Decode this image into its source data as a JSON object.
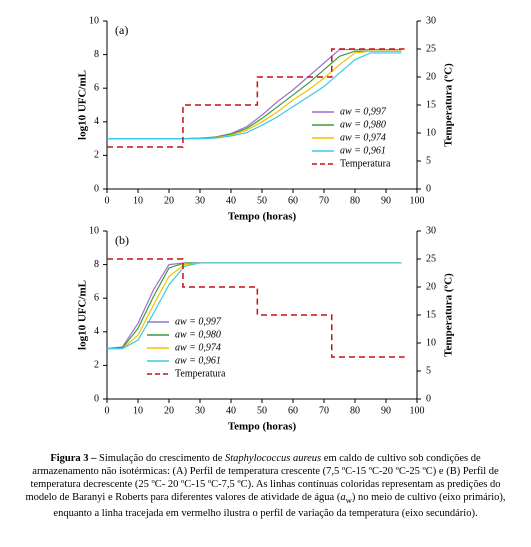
{
  "chart_data": [
    {
      "type": "line",
      "title": "(a)",
      "xlabel": "Tempo (horas)",
      "ylabel": "log10 UFC/mL",
      "y2label": "Temperatura (ºC)",
      "xlim": [
        0,
        100
      ],
      "xticks": [
        0,
        10,
        20,
        30,
        40,
        50,
        60,
        70,
        80,
        90,
        100
      ],
      "ylim": [
        0,
        10
      ],
      "yticks": [
        0,
        2,
        4,
        6,
        8,
        10
      ],
      "y2lim": [
        0,
        30
      ],
      "y2ticks": [
        0,
        5,
        10,
        15,
        20,
        25,
        30
      ],
      "legend": "lower right",
      "series": [
        {
          "name": "aw = 0,997",
          "color": "#9b6fd0",
          "x": [
            0,
            5,
            10,
            15,
            20,
            25,
            30,
            35,
            40,
            45,
            50,
            55,
            60,
            65,
            70,
            75,
            80,
            85,
            90,
            95
          ],
          "values": [
            3,
            3,
            3,
            3,
            3,
            3,
            3.02,
            3.1,
            3.3,
            3.7,
            4.4,
            5.2,
            5.9,
            6.7,
            7.5,
            8.3,
            8.3,
            8.3,
            8.3,
            8.3
          ]
        },
        {
          "name": "aw = 0,980",
          "color": "#3a9a3a",
          "x": [
            0,
            5,
            10,
            15,
            20,
            25,
            30,
            35,
            40,
            45,
            50,
            55,
            60,
            65,
            70,
            75,
            80,
            85,
            90,
            95
          ],
          "values": [
            3,
            3,
            3,
            3,
            3,
            3,
            3.02,
            3.08,
            3.25,
            3.6,
            4.2,
            4.9,
            5.6,
            6.3,
            7.1,
            7.9,
            8.2,
            8.2,
            8.2,
            8.2
          ]
        },
        {
          "name": "aw = 0,974",
          "color": "#f2c200",
          "x": [
            0,
            5,
            10,
            15,
            20,
            25,
            30,
            35,
            40,
            45,
            50,
            55,
            60,
            65,
            70,
            75,
            80,
            85,
            90,
            95
          ],
          "values": [
            3,
            3,
            3,
            3,
            3,
            3,
            3,
            3.05,
            3.2,
            3.5,
            4.0,
            4.6,
            5.3,
            5.9,
            6.6,
            7.4,
            8.1,
            8.2,
            8.2,
            8.2
          ]
        },
        {
          "name": "aw = 0,961",
          "color": "#3cc8ec",
          "x": [
            0,
            5,
            10,
            15,
            20,
            25,
            30,
            35,
            40,
            45,
            50,
            55,
            60,
            65,
            70,
            75,
            80,
            85,
            90,
            95
          ],
          "values": [
            3,
            3,
            3,
            3,
            3,
            3,
            3,
            3.03,
            3.15,
            3.35,
            3.8,
            4.3,
            4.9,
            5.5,
            6.1,
            6.9,
            7.7,
            8.1,
            8.1,
            8.1
          ]
        },
        {
          "name": "Temperatura",
          "color": "#cc1111",
          "dash": true,
          "axis": "y2",
          "x": [
            0,
            24.5,
            24.5,
            48.5,
            48.5,
            72.5,
            72.5,
            96
          ],
          "values": [
            7.5,
            7.5,
            15,
            15,
            20,
            20,
            25,
            25
          ]
        }
      ]
    },
    {
      "type": "line",
      "title": "(b)",
      "xlabel": "Tempo (horas)",
      "ylabel": "log10 UFC/mL",
      "y2label": "Temperatura (ºC)",
      "xlim": [
        0,
        100
      ],
      "xticks": [
        0,
        10,
        20,
        30,
        40,
        50,
        60,
        70,
        80,
        90,
        100
      ],
      "ylim": [
        0,
        10
      ],
      "yticks": [
        0,
        2,
        4,
        6,
        8,
        10
      ],
      "y2lim": [
        0,
        30
      ],
      "y2ticks": [
        0,
        5,
        10,
        15,
        20,
        25,
        30
      ],
      "legend": "lower center",
      "series": [
        {
          "name": "aw = 0,997",
          "color": "#9b6fd0",
          "x": [
            0,
            5,
            10,
            15,
            20,
            25,
            30,
            35,
            40,
            45,
            50,
            55,
            60,
            65,
            70,
            75,
            80,
            85,
            90,
            95
          ],
          "values": [
            3,
            3.1,
            4.5,
            6.5,
            8.0,
            8.1,
            8.1,
            8.1,
            8.1,
            8.1,
            8.1,
            8.1,
            8.1,
            8.1,
            8.1,
            8.1,
            8.1,
            8.1,
            8.1,
            8.1
          ]
        },
        {
          "name": "aw = 0,980",
          "color": "#3a9a3a",
          "x": [
            0,
            5,
            10,
            15,
            20,
            25,
            30,
            35,
            40,
            45,
            50,
            55,
            60,
            65,
            70,
            75,
            80,
            85,
            90,
            95
          ],
          "values": [
            3,
            3.05,
            4.2,
            6.1,
            7.8,
            8.1,
            8.1,
            8.1,
            8.1,
            8.1,
            8.1,
            8.1,
            8.1,
            8.1,
            8.1,
            8.1,
            8.1,
            8.1,
            8.1,
            8.1
          ]
        },
        {
          "name": "aw = 0,974",
          "color": "#f2c200",
          "x": [
            0,
            5,
            10,
            15,
            20,
            25,
            30,
            35,
            40,
            45,
            50,
            55,
            60,
            65,
            70,
            75,
            80,
            85,
            90,
            95
          ],
          "values": [
            3,
            3,
            3.8,
            5.6,
            7.3,
            8.0,
            8.1,
            8.1,
            8.1,
            8.1,
            8.1,
            8.1,
            8.1,
            8.1,
            8.1,
            8.1,
            8.1,
            8.1,
            8.1,
            8.1
          ]
        },
        {
          "name": "aw = 0,961",
          "color": "#3cc8ec",
          "x": [
            0,
            5,
            10,
            15,
            20,
            25,
            30,
            35,
            40,
            45,
            50,
            55,
            60,
            65,
            70,
            75,
            80,
            85,
            90,
            95
          ],
          "values": [
            3,
            3,
            3.5,
            5.1,
            6.8,
            7.9,
            8.1,
            8.1,
            8.1,
            8.1,
            8.1,
            8.1,
            8.1,
            8.1,
            8.1,
            8.1,
            8.1,
            8.1,
            8.1,
            8.1
          ]
        },
        {
          "name": "Temperatura",
          "color": "#cc1111",
          "dash": true,
          "axis": "y2",
          "x": [
            0,
            24.5,
            24.5,
            48.5,
            48.5,
            72.5,
            72.5,
            96
          ],
          "values": [
            25,
            25,
            20,
            20,
            15,
            15,
            7.5,
            7.5
          ]
        }
      ]
    }
  ],
  "caption": [
    "Figura 3 –",
    " Simulação do crescimento de ",
    "Staphylococcus aureus",
    " em caldo de cultivo sob condições de armazenamento não isotérmicas: (A) Perfil de temperatura crescente (7,5 ºC-15 ºC-20 ºC-25 ºC) e (B) Perfil de temperatura decrescente (25 ºC- 20 ºC-15 ºC-7,5 ºC). As linhas contínuas coloridas representam as predições do modelo de Baranyi e Roberts para diferentes valores de atividade de água (",
    "a",
    "w",
    ") no meio de cultivo (eixo primário), enquanto a linha tracejada em vermelho ilustra o perfil de variação da temperatura (eixo secundário)."
  ]
}
